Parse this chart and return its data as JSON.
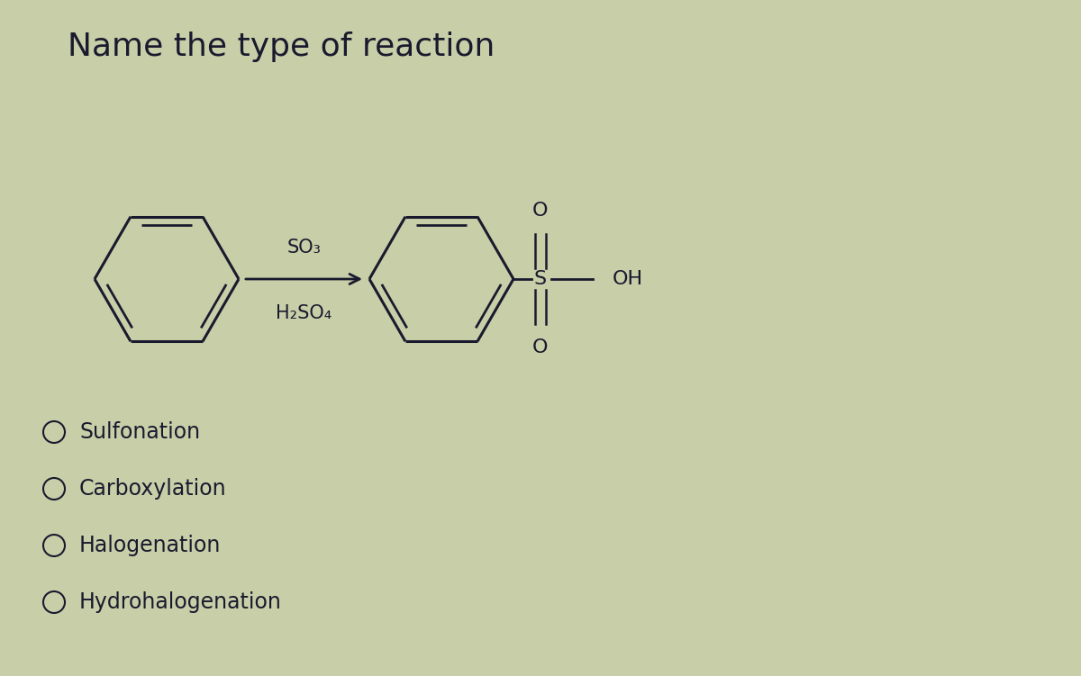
{
  "title": "Name the type of reaction",
  "background_color": "#c8cfa8",
  "text_color": "#1a1a2e",
  "options": [
    "Sulfonation",
    "Carboxylation",
    "Halogenation",
    "Hydrohalogenation"
  ],
  "reagent_top": "SO₃",
  "reagent_bottom": "H₂SO₄",
  "title_fontsize": 26,
  "option_fontsize": 17,
  "chem_fontsize": 15
}
